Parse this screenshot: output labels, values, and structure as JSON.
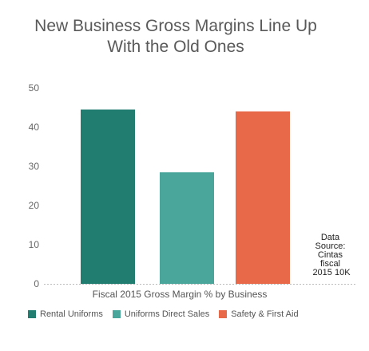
{
  "chart_data": {
    "type": "bar",
    "title_lines": [
      "New Business Gross Margins Line Up",
      "With the Old Ones"
    ],
    "xlabel": "Fiscal 2015 Gross Margin % by Business",
    "ylabel": "",
    "ylim": [
      0,
      50
    ],
    "yticks": [
      "0",
      "10",
      "20",
      "30",
      "40",
      "50"
    ],
    "grid": false,
    "legend_position": "bottom-left",
    "series": [
      {
        "name": "Rental Uniforms",
        "value": 44.5,
        "color": "#217d70"
      },
      {
        "name": "Uniforms Direct Sales",
        "value": 28.5,
        "color": "#4aa69a"
      },
      {
        "name": "Safety & First Aid",
        "value": 44.0,
        "color": "#e8694a"
      }
    ],
    "annotation_lines": [
      "Data",
      "Source:",
      "Cintas",
      "fiscal",
      "2015 10K"
    ]
  }
}
